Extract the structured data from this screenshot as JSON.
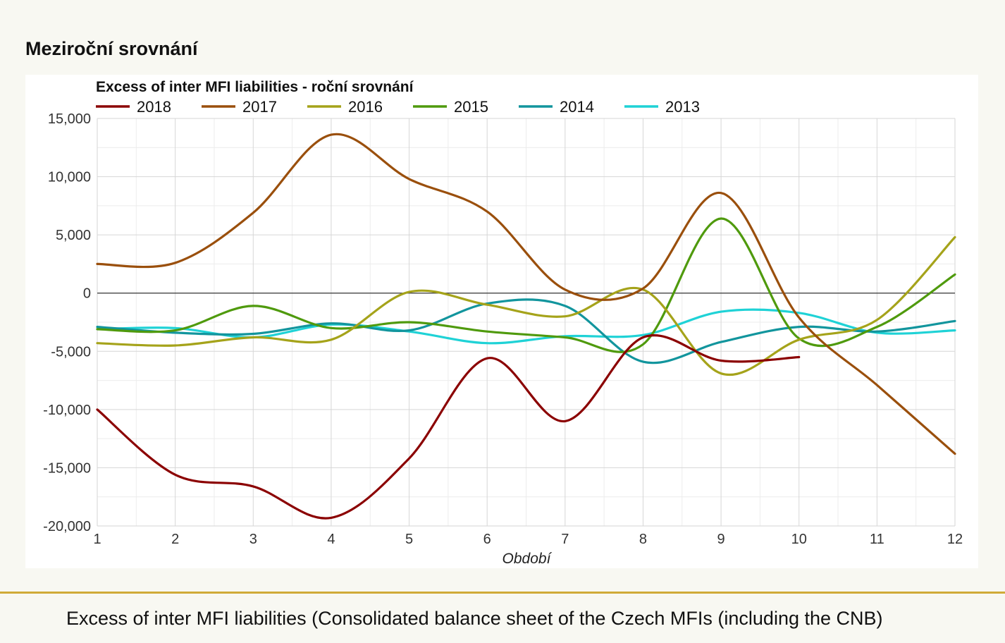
{
  "page": {
    "section_title": "Meziroční srovnání",
    "caption": "Excess of inter MFI liabilities (Consolidated balance sheet of the Czech MFIs (including the CNB)"
  },
  "chart_data": {
    "type": "line",
    "title": "Excess of inter MFI liabilities - roční srovnání",
    "xlabel": "Období",
    "ylabel": "",
    "x": [
      1,
      2,
      3,
      4,
      5,
      6,
      7,
      8,
      9,
      10,
      11,
      12
    ],
    "xlim": [
      1,
      12
    ],
    "ylim": [
      -20000,
      15000
    ],
    "yticks": [
      15000,
      10000,
      5000,
      0,
      -5000,
      -10000,
      -15000,
      -20000
    ],
    "ytick_labels": [
      "15,000",
      "10,000",
      "5,000",
      "0",
      "-5,000",
      "-10,000",
      "-15,000",
      "-20,000"
    ],
    "xtick_labels": [
      "1",
      "2",
      "3",
      "4",
      "5",
      "6",
      "7",
      "8",
      "9",
      "10",
      "11",
      "12"
    ],
    "grid": true,
    "legend_position": "top-left",
    "series": [
      {
        "name": "2018",
        "color": "#8b0000",
        "values": [
          -10000,
          -15600,
          -16600,
          -19300,
          -14200,
          -5600,
          -11000,
          -3800,
          -5800,
          -5500,
          null,
          null
        ]
      },
      {
        "name": "2017",
        "color": "#9a4f0c",
        "values": [
          2500,
          2600,
          6900,
          13600,
          9800,
          7000,
          300,
          400,
          8600,
          -2100,
          -7900,
          -13800
        ]
      },
      {
        "name": "2016",
        "color": "#a5a31a",
        "values": [
          -4300,
          -4500,
          -3800,
          -4000,
          100,
          -1000,
          -2000,
          300,
          -6900,
          -4000,
          -2300,
          4800
        ]
      },
      {
        "name": "2015",
        "color": "#4f9a0d",
        "values": [
          -3100,
          -3200,
          -1100,
          -3000,
          -2500,
          -3300,
          -3800,
          -4400,
          6400,
          -3900,
          -2900,
          1600
        ]
      },
      {
        "name": "2014",
        "color": "#12959d",
        "values": [
          -2900,
          -3400,
          -3500,
          -2600,
          -3200,
          -900,
          -1100,
          -5900,
          -4200,
          -2900,
          -3300,
          -2400
        ]
      },
      {
        "name": "2013",
        "color": "#1fd2d6",
        "values": [
          -3100,
          -3000,
          -3800,
          -2700,
          -3300,
          -4300,
          -3700,
          -3600,
          -1600,
          -1700,
          -3400,
          -3200
        ]
      }
    ]
  }
}
